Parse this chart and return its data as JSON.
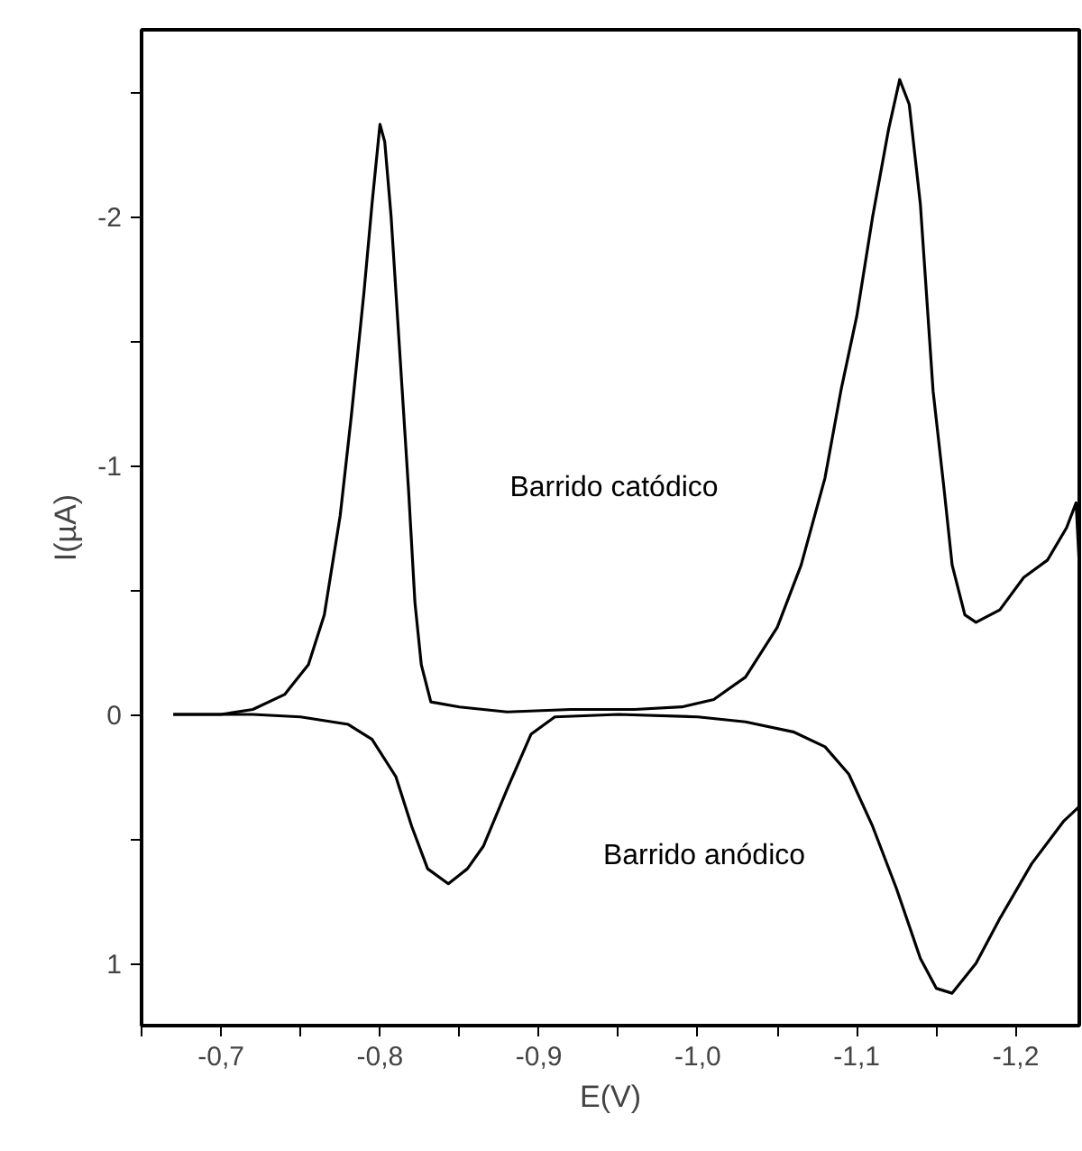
{
  "chart_data": {
    "type": "line",
    "xlabel": "E(V)",
    "ylabel": "I(µA)",
    "xlim": [
      -0.65,
      -1.24
    ],
    "ylim": [
      1.25,
      -2.75
    ],
    "xticks": [
      {
        "value": -0.65,
        "label": null
      },
      {
        "value": -0.7,
        "label": "-0,7"
      },
      {
        "value": -0.75,
        "label": null
      },
      {
        "value": -0.8,
        "label": "-0,8"
      },
      {
        "value": -0.85,
        "label": null
      },
      {
        "value": -0.9,
        "label": "-0,9"
      },
      {
        "value": -0.95,
        "label": null
      },
      {
        "value": -1.0,
        "label": "-1,0"
      },
      {
        "value": -1.05,
        "label": null
      },
      {
        "value": -1.1,
        "label": "-1,1"
      },
      {
        "value": -1.15,
        "label": null
      },
      {
        "value": -1.2,
        "label": "-1,2"
      }
    ],
    "yticks": [
      {
        "value": -2.5,
        "label": null
      },
      -2,
      {
        "value": -1.5,
        "label": null
      },
      -1,
      {
        "value": -0.5,
        "label": null
      },
      0,
      {
        "value": 0.5,
        "label": null
      },
      1
    ],
    "grid": false,
    "marker": "none",
    "line_style": "solid",
    "series": [
      {
        "color": "#000000",
        "x": [
          -0.67,
          -0.7,
          -0.72,
          -0.74,
          -0.755,
          -0.765,
          -0.775,
          -0.782,
          -0.79,
          -0.795,
          -0.8,
          -0.803,
          -0.807,
          -0.812,
          -0.818,
          -0.822,
          -0.826,
          -0.832,
          -0.85,
          -0.88,
          -0.92,
          -0.96,
          -0.99,
          -1.01,
          -1.03,
          -1.05,
          -1.065,
          -1.08,
          -1.09,
          -1.1,
          -1.11,
          -1.12,
          -1.127,
          -1.133,
          -1.14,
          -1.148,
          -1.155,
          -1.16,
          -1.168,
          -1.175,
          -1.19,
          -1.205,
          -1.22,
          -1.232,
          -1.238,
          -1.24
        ],
        "values": [
          0,
          0,
          -0.02,
          -0.08,
          -0.2,
          -0.4,
          -0.8,
          -1.2,
          -1.7,
          -2.05,
          -2.37,
          -2.3,
          -2.0,
          -1.5,
          -0.9,
          -0.45,
          -0.2,
          -0.05,
          -0.03,
          -0.01,
          -0.02,
          -0.02,
          -0.03,
          -0.06,
          -0.15,
          -0.35,
          -0.6,
          -0.95,
          -1.3,
          -1.6,
          -2.0,
          -2.35,
          -2.55,
          -2.45,
          -2.05,
          -1.3,
          -0.9,
          -0.6,
          -0.4,
          -0.37,
          -0.42,
          -0.55,
          -0.62,
          -0.75,
          -0.85,
          -0.6
        ]
      },
      {
        "color": "#000000",
        "x": [
          -1.24,
          -1.23,
          -1.21,
          -1.19,
          -1.175,
          -1.16,
          -1.15,
          -1.14,
          -1.125,
          -1.11,
          -1.095,
          -1.08,
          -1.06,
          -1.03,
          -1.0,
          -0.95,
          -0.91,
          -0.895,
          -0.88,
          -0.865,
          -0.855,
          -0.843,
          -0.83,
          -0.82,
          -0.81,
          -0.795,
          -0.78,
          -0.75,
          -0.72,
          -0.67
        ],
        "values": [
          0.37,
          0.43,
          0.6,
          0.82,
          1.0,
          1.12,
          1.1,
          0.98,
          0.7,
          0.45,
          0.24,
          0.13,
          0.07,
          0.03,
          0.01,
          0,
          0.01,
          0.08,
          0.3,
          0.53,
          0.62,
          0.68,
          0.62,
          0.45,
          0.25,
          0.1,
          0.04,
          0.01,
          0,
          0
        ]
      }
    ],
    "annotations": [
      "Barrido catódico",
      "Barrido anódico"
    ]
  }
}
